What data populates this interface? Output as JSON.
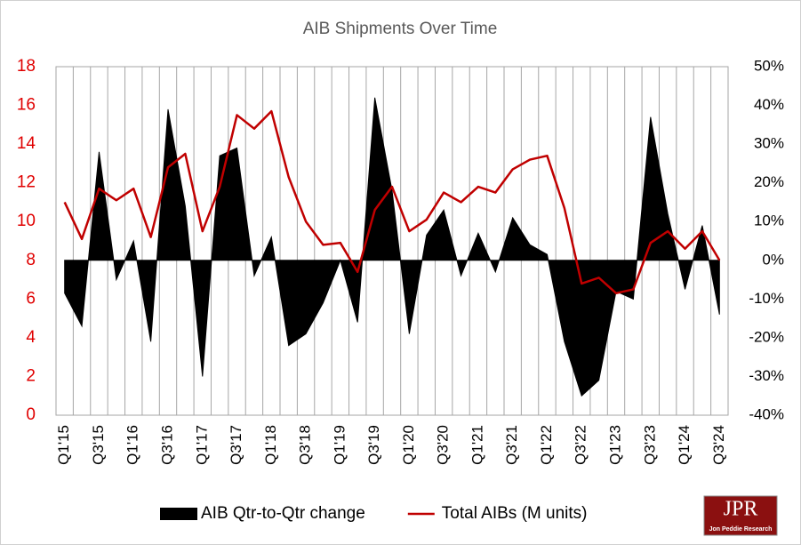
{
  "chart_data": {
    "type": "combo",
    "title": "AIB Shipments Over Time",
    "categories": [
      "Q1'15",
      null,
      "Q3'15",
      null,
      "Q1'16",
      null,
      "Q3'16",
      null,
      "Q1'17",
      null,
      "Q3'17",
      null,
      "Q1'18",
      null,
      "Q3'18",
      null,
      "Q1'19",
      null,
      "Q3'19",
      null,
      "Q1'20",
      null,
      "Q3'20",
      null,
      "Q1'21",
      null,
      "Q3'21",
      null,
      "Q1'22",
      null,
      "Q3'22",
      null,
      "Q1'23",
      null,
      "Q3'23",
      null,
      "Q1'24",
      null,
      "Q3'24"
    ],
    "series": [
      {
        "name": "AIB Qtr-to-Qtr change",
        "type": "area",
        "axis": "y2",
        "color": "#000000",
        "values": [
          -8.5,
          -17,
          28,
          -5,
          5,
          -21,
          39,
          14,
          -30,
          27,
          29,
          -4,
          6,
          -22,
          -19,
          -11,
          0,
          -16,
          42,
          18,
          -19,
          6.5,
          13,
          -4,
          7,
          -3,
          11,
          4,
          1.5,
          -21,
          -35,
          -31,
          -8,
          -10,
          37,
          12,
          -7.5,
          9,
          -14
        ]
      },
      {
        "name": "Total AIBs (M units)",
        "type": "line",
        "axis": "y",
        "color": "#c00000",
        "values": [
          11.0,
          9.1,
          11.7,
          11.1,
          11.7,
          9.2,
          12.8,
          13.5,
          9.5,
          11.8,
          15.5,
          14.8,
          15.7,
          12.3,
          10.0,
          8.8,
          8.9,
          7.4,
          10.6,
          11.8,
          9.5,
          10.1,
          11.5,
          11.0,
          11.8,
          11.5,
          12.7,
          13.2,
          13.4,
          10.7,
          6.8,
          7.1,
          6.3,
          6.5,
          8.9,
          9.5,
          8.6,
          9.5,
          8.0
        ]
      }
    ],
    "ylim": [
      0,
      18
    ],
    "yticks": [
      0,
      2,
      4,
      6,
      8,
      10,
      12,
      14,
      16,
      18
    ],
    "ytick_color": "#e00000",
    "y2lim": [
      -40,
      50
    ],
    "y2ticks": [
      {
        "value": -40,
        "label": "-40%"
      },
      {
        "value": -30,
        "label": "-30%"
      },
      {
        "value": -20,
        "label": "-20%"
      },
      {
        "value": -10,
        "label": "-10%"
      },
      {
        "value": 0,
        "label": "0%"
      },
      {
        "value": 10,
        "label": "10%"
      },
      {
        "value": 20,
        "label": "20%"
      },
      {
        "value": 30,
        "label": "30%"
      },
      {
        "value": 40,
        "label": "40%"
      },
      {
        "value": 50,
        "label": "50%"
      }
    ],
    "vertical_grid": true,
    "legend": "bottom"
  },
  "logo": {
    "text": "JPR",
    "subtitle": "Jon Peddie Research"
  }
}
